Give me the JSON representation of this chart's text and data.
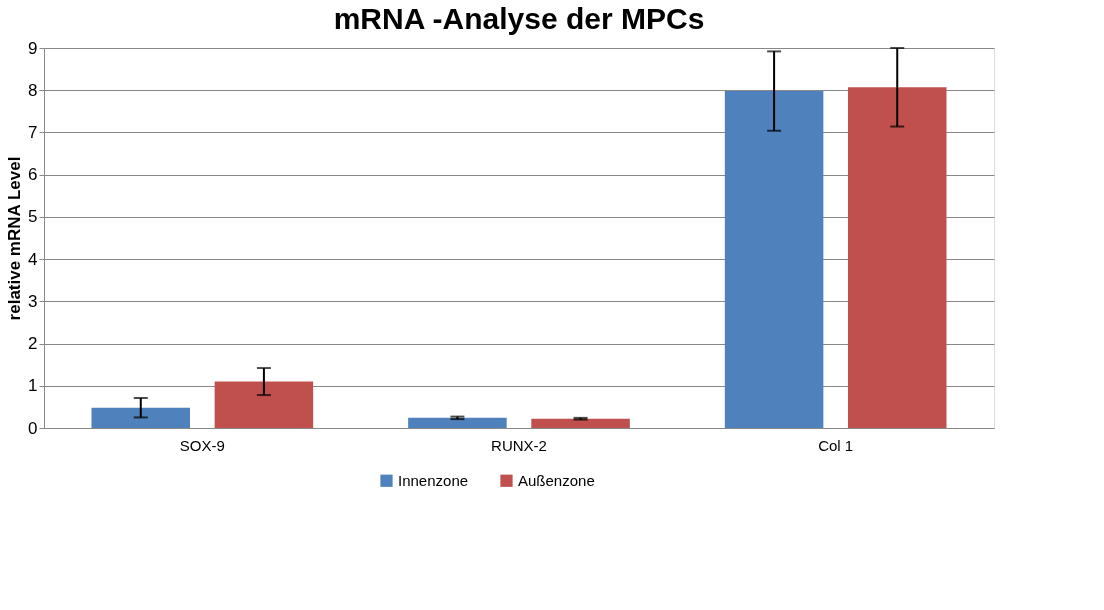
{
  "chart_data": {
    "type": "bar",
    "title": "mRNA -Analyse der MPCs",
    "ylabel": "relative mRNA Level",
    "categories": [
      "SOX-9",
      "RUNX-2",
      "Col 1"
    ],
    "series": [
      {
        "name": "Innenzone",
        "color": "#4f81bd",
        "values": [
          0.48,
          0.24,
          7.98
        ],
        "errors": [
          0.23,
          0.03,
          0.94
        ]
      },
      {
        "name": "Außenzone",
        "color": "#c0504d",
        "values": [
          1.1,
          0.22,
          8.07
        ],
        "errors": [
          0.32,
          0.02,
          0.93
        ]
      }
    ],
    "ylim": [
      0,
      9
    ],
    "yticks": [
      0,
      1,
      2,
      3,
      4,
      5,
      6,
      7,
      8,
      9
    ],
    "grid": "y",
    "legend": "bottom"
  }
}
